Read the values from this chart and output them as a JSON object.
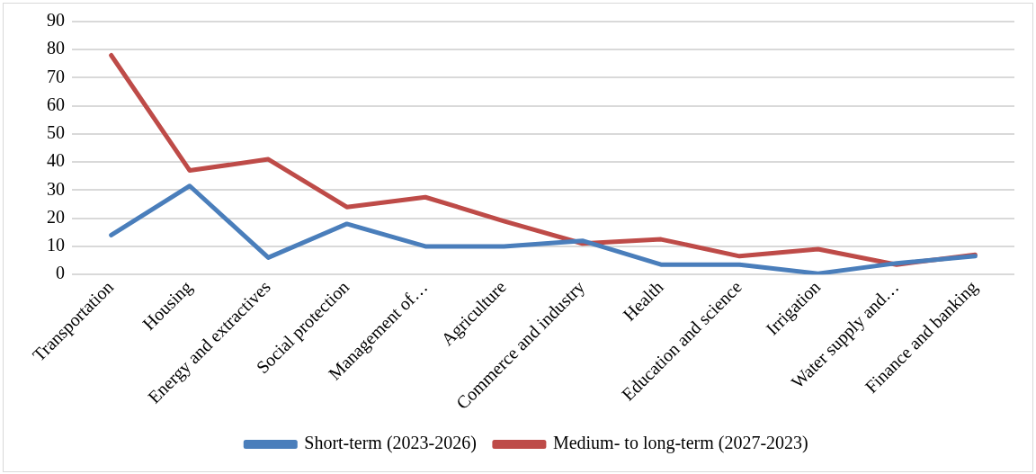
{
  "chart_data": {
    "type": "line",
    "categories": [
      "Transportation",
      "Housing",
      "Energy and extractives",
      "Social protection",
      "Management of…",
      "Agriculture",
      "Commerce and industry",
      "Health",
      "Education and science",
      "Irrigation",
      "Water supply and…",
      "Finance and banking"
    ],
    "series": [
      {
        "name": "Short-term (2023-2026)",
        "color": "#4a7ebb",
        "values": [
          14,
          31.5,
          6,
          18,
          10,
          10,
          12,
          3.5,
          3.5,
          0.3,
          4,
          6.5
        ]
      },
      {
        "name": "Medium- to long-term (2027-2023)",
        "color": "#be4b48",
        "values": [
          78,
          37,
          41,
          24,
          27.5,
          19,
          11,
          12.5,
          6.5,
          9,
          3.5,
          7
        ]
      }
    ],
    "ylim": [
      0,
      90
    ],
    "yticks": [
      0,
      10,
      20,
      30,
      40,
      50,
      60,
      70,
      80,
      90
    ],
    "grid": "y",
    "legend": "bottom",
    "marker": "none",
    "line_style": "solid"
  }
}
